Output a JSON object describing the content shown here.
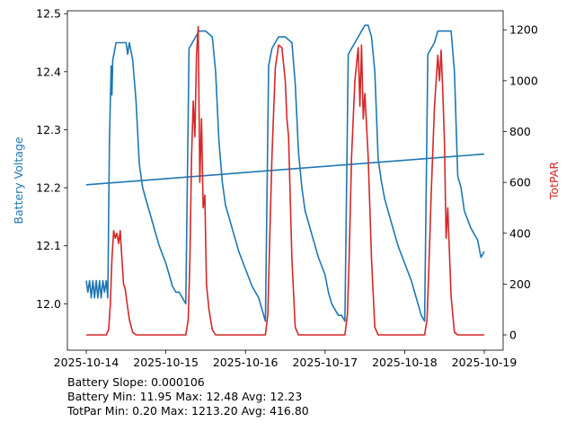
{
  "chart_data": {
    "type": "line",
    "x_ticks": [
      "2025-10-14",
      "2025-10-15",
      "2025-10-16",
      "2025-10-17",
      "2025-10-18",
      "2025-10-19"
    ],
    "left_axis": {
      "label": "Battery Voltage",
      "color": "#1f77b4",
      "ylim": [
        11.92,
        12.505
      ],
      "ticks": [
        "12.0",
        "12.1",
        "12.2",
        "12.3",
        "12.4",
        "12.5"
      ]
    },
    "right_axis": {
      "label": "TotPAR",
      "color": "#d62728",
      "ylim": [
        -60,
        1275
      ],
      "ticks": [
        "0",
        "200",
        "400",
        "600",
        "800",
        "1000",
        "1200"
      ]
    },
    "series": [
      {
        "axis": "left",
        "color": "#1f77b4",
        "points": [
          [
            "2025-10-14 00:00",
            12.04
          ],
          [
            "2025-10-14 00:30",
            12.02
          ],
          [
            "2025-10-14 01:00",
            12.04
          ],
          [
            "2025-10-14 01:30",
            12.01
          ],
          [
            "2025-10-14 02:00",
            12.04
          ],
          [
            "2025-10-14 02:30",
            12.01
          ],
          [
            "2025-10-14 03:00",
            12.04
          ],
          [
            "2025-10-14 03:30",
            12.01
          ],
          [
            "2025-10-14 04:00",
            12.04
          ],
          [
            "2025-10-14 04:30",
            12.01
          ],
          [
            "2025-10-14 05:00",
            12.04
          ],
          [
            "2025-10-14 05:30",
            12.02
          ],
          [
            "2025-10-14 06:00",
            12.04
          ],
          [
            "2025-10-14 06:30",
            12.01
          ],
          [
            "2025-10-14 07:00",
            12.28
          ],
          [
            "2025-10-14 07:30",
            12.41
          ],
          [
            "2025-10-14 07:45",
            12.36
          ],
          [
            "2025-10-14 08:00",
            12.42
          ],
          [
            "2025-10-14 09:00",
            12.45
          ],
          [
            "2025-10-14 10:00",
            12.45
          ],
          [
            "2025-10-14 11:00",
            12.45
          ],
          [
            "2025-10-14 12:00",
            12.45
          ],
          [
            "2025-10-14 12:30",
            12.43
          ],
          [
            "2025-10-14 13:00",
            12.45
          ],
          [
            "2025-10-14 14:00",
            12.42
          ],
          [
            "2025-10-14 15:00",
            12.35
          ],
          [
            "2025-10-14 16:00",
            12.24
          ],
          [
            "2025-10-14 17:00",
            12.2
          ],
          [
            "2025-10-14 18:00",
            12.18
          ],
          [
            "2025-10-14 20:00",
            12.14
          ],
          [
            "2025-10-14 22:00",
            12.1
          ],
          [
            "2025-10-15 00:00",
            12.07
          ],
          [
            "2025-10-15 01:00",
            12.05
          ],
          [
            "2025-10-15 02:00",
            12.03
          ],
          [
            "2025-10-15 03:00",
            12.02
          ],
          [
            "2025-10-15 04:00",
            12.02
          ],
          [
            "2025-10-15 05:00",
            12.01
          ],
          [
            "2025-10-15 06:00",
            12.0
          ],
          [
            "2025-10-15 07:00",
            12.44
          ],
          [
            "2025-10-15 08:00",
            12.45
          ],
          [
            "2025-10-15 09:00",
            12.46
          ],
          [
            "2025-10-15 10:00",
            12.47
          ],
          [
            "2025-10-15 12:00",
            12.47
          ],
          [
            "2025-10-15 14:00",
            12.46
          ],
          [
            "2025-10-15 15:00",
            12.4
          ],
          [
            "2025-10-15 16:00",
            12.28
          ],
          [
            "2025-10-15 17:00",
            12.21
          ],
          [
            "2025-10-15 18:00",
            12.17
          ],
          [
            "2025-10-15 20:00",
            12.13
          ],
          [
            "2025-10-15 22:00",
            12.09
          ],
          [
            "2025-10-16 00:00",
            12.06
          ],
          [
            "2025-10-16 02:00",
            12.03
          ],
          [
            "2025-10-16 04:00",
            12.01
          ],
          [
            "2025-10-16 05:00",
            11.99
          ],
          [
            "2025-10-16 06:00",
            11.97
          ],
          [
            "2025-10-16 07:00",
            12.41
          ],
          [
            "2025-10-16 08:00",
            12.44
          ],
          [
            "2025-10-16 09:00",
            12.45
          ],
          [
            "2025-10-16 10:00",
            12.46
          ],
          [
            "2025-10-16 12:00",
            12.46
          ],
          [
            "2025-10-16 14:00",
            12.45
          ],
          [
            "2025-10-16 15:00",
            12.38
          ],
          [
            "2025-10-16 16:00",
            12.26
          ],
          [
            "2025-10-16 17:00",
            12.2
          ],
          [
            "2025-10-16 18:00",
            12.16
          ],
          [
            "2025-10-16 20:00",
            12.12
          ],
          [
            "2025-10-16 22:00",
            12.08
          ],
          [
            "2025-10-17 00:00",
            12.05
          ],
          [
            "2025-10-17 01:00",
            12.02
          ],
          [
            "2025-10-17 02:00",
            12.0
          ],
          [
            "2025-10-17 03:00",
            11.99
          ],
          [
            "2025-10-17 04:00",
            11.98
          ],
          [
            "2025-10-17 05:00",
            11.98
          ],
          [
            "2025-10-17 06:00",
            11.97
          ],
          [
            "2025-10-17 07:00",
            12.43
          ],
          [
            "2025-10-17 08:00",
            12.44
          ],
          [
            "2025-10-17 10:00",
            12.46
          ],
          [
            "2025-10-17 12:00",
            12.48
          ],
          [
            "2025-10-17 13:00",
            12.48
          ],
          [
            "2025-10-17 14:00",
            12.46
          ],
          [
            "2025-10-17 15:00",
            12.4
          ],
          [
            "2025-10-17 16:00",
            12.25
          ],
          [
            "2025-10-17 17:00",
            12.21
          ],
          [
            "2025-10-17 18:00",
            12.18
          ],
          [
            "2025-10-17 20:00",
            12.14
          ],
          [
            "2025-10-17 22:00",
            12.1
          ],
          [
            "2025-10-18 00:00",
            12.07
          ],
          [
            "2025-10-18 02:00",
            12.04
          ],
          [
            "2025-10-18 03:00",
            12.02
          ],
          [
            "2025-10-18 04:00",
            12.0
          ],
          [
            "2025-10-18 05:00",
            11.98
          ],
          [
            "2025-10-18 06:00",
            11.97
          ],
          [
            "2025-10-18 07:00",
            12.43
          ],
          [
            "2025-10-18 08:00",
            12.44
          ],
          [
            "2025-10-18 09:00",
            12.45
          ],
          [
            "2025-10-18 10:00",
            12.47
          ],
          [
            "2025-10-18 12:00",
            12.47
          ],
          [
            "2025-10-18 14:00",
            12.47
          ],
          [
            "2025-10-18 15:00",
            12.4
          ],
          [
            "2025-10-18 16:00",
            12.22
          ],
          [
            "2025-10-18 17:00",
            12.2
          ],
          [
            "2025-10-18 18:00",
            12.16
          ],
          [
            "2025-10-18 20:00",
            12.13
          ],
          [
            "2025-10-18 22:00",
            12.11
          ],
          [
            "2025-10-18 23:00",
            12.08
          ],
          [
            "2025-10-19 00:00",
            12.09
          ]
        ]
      },
      {
        "axis": "left",
        "color": "#1f77b4",
        "points": [
          [
            "2025-10-14 00:00",
            12.205
          ],
          [
            "2025-10-19 00:00",
            12.258
          ]
        ]
      },
      {
        "axis": "right",
        "color": "#d62728",
        "points": [
          [
            "2025-10-14 00:00",
            0
          ],
          [
            "2025-10-14 06:00",
            0
          ],
          [
            "2025-10-14 06:45",
            20
          ],
          [
            "2025-10-14 07:15",
            120
          ],
          [
            "2025-10-14 07:45",
            300
          ],
          [
            "2025-10-14 08:15",
            410
          ],
          [
            "2025-10-14 08:45",
            380
          ],
          [
            "2025-10-14 09:15",
            400
          ],
          [
            "2025-10-14 09:45",
            360
          ],
          [
            "2025-10-14 10:15",
            410
          ],
          [
            "2025-10-14 10:45",
            300
          ],
          [
            "2025-10-14 11:15",
            200
          ],
          [
            "2025-10-14 11:45",
            180
          ],
          [
            "2025-10-14 12:15",
            130
          ],
          [
            "2025-10-14 13:00",
            60
          ],
          [
            "2025-10-14 14:00",
            10
          ],
          [
            "2025-10-14 15:00",
            0
          ],
          [
            "2025-10-15 06:00",
            0
          ],
          [
            "2025-10-15 06:45",
            60
          ],
          [
            "2025-10-15 07:15",
            300
          ],
          [
            "2025-10-15 07:45",
            700
          ],
          [
            "2025-10-15 08:15",
            920
          ],
          [
            "2025-10-15 08:45",
            780
          ],
          [
            "2025-10-15 09:15",
            1100
          ],
          [
            "2025-10-15 09:45",
            1213
          ],
          [
            "2025-10-15 10:15",
            600
          ],
          [
            "2025-10-15 10:45",
            850
          ],
          [
            "2025-10-15 11:15",
            500
          ],
          [
            "2025-10-15 11:45",
            550
          ],
          [
            "2025-10-15 12:15",
            200
          ],
          [
            "2025-10-15 13:00",
            100
          ],
          [
            "2025-10-15 14:00",
            20
          ],
          [
            "2025-10-15 15:00",
            0
          ],
          [
            "2025-10-16 06:00",
            0
          ],
          [
            "2025-10-16 06:45",
            80
          ],
          [
            "2025-10-16 07:15",
            350
          ],
          [
            "2025-10-16 08:00",
            700
          ],
          [
            "2025-10-16 09:00",
            1050
          ],
          [
            "2025-10-16 10:00",
            1140
          ],
          [
            "2025-10-16 11:00",
            1130
          ],
          [
            "2025-10-16 12:00",
            1000
          ],
          [
            "2025-10-16 12:30",
            850
          ],
          [
            "2025-10-16 13:00",
            780
          ],
          [
            "2025-10-16 14:00",
            300
          ],
          [
            "2025-10-16 15:00",
            30
          ],
          [
            "2025-10-16 16:00",
            0
          ],
          [
            "2025-10-17 06:00",
            0
          ],
          [
            "2025-10-17 06:45",
            80
          ],
          [
            "2025-10-17 07:15",
            300
          ],
          [
            "2025-10-17 08:00",
            700
          ],
          [
            "2025-10-17 09:00",
            1000
          ],
          [
            "2025-10-17 10:00",
            1130
          ],
          [
            "2025-10-17 10:30",
            900
          ],
          [
            "2025-10-17 11:00",
            1140
          ],
          [
            "2025-10-17 11:30",
            850
          ],
          [
            "2025-10-17 12:00",
            950
          ],
          [
            "2025-10-17 13:00",
            700
          ],
          [
            "2025-10-17 14:00",
            300
          ],
          [
            "2025-10-17 15:00",
            30
          ],
          [
            "2025-10-17 16:00",
            0
          ],
          [
            "2025-10-18 06:00",
            0
          ],
          [
            "2025-10-18 06:45",
            60
          ],
          [
            "2025-10-18 07:15",
            250
          ],
          [
            "2025-10-18 08:00",
            550
          ],
          [
            "2025-10-18 09:00",
            900
          ],
          [
            "2025-10-18 10:00",
            1100
          ],
          [
            "2025-10-18 10:30",
            1000
          ],
          [
            "2025-10-18 11:00",
            1120
          ],
          [
            "2025-10-18 11:30",
            950
          ],
          [
            "2025-10-18 12:00",
            760
          ],
          [
            "2025-10-18 12:30",
            380
          ],
          [
            "2025-10-18 13:00",
            500
          ],
          [
            "2025-10-18 14:00",
            150
          ],
          [
            "2025-10-18 15:00",
            10
          ],
          [
            "2025-10-18 16:00",
            0
          ],
          [
            "2025-10-19 00:00",
            0
          ]
        ]
      }
    ]
  },
  "stats": {
    "line1": "Battery Slope: 0.000106",
    "line2": "Battery Min: 11.95 Max: 12.48 Avg: 12.23",
    "line3": "TotPar Min: 0.20 Max: 1213.20 Avg: 416.80"
  }
}
